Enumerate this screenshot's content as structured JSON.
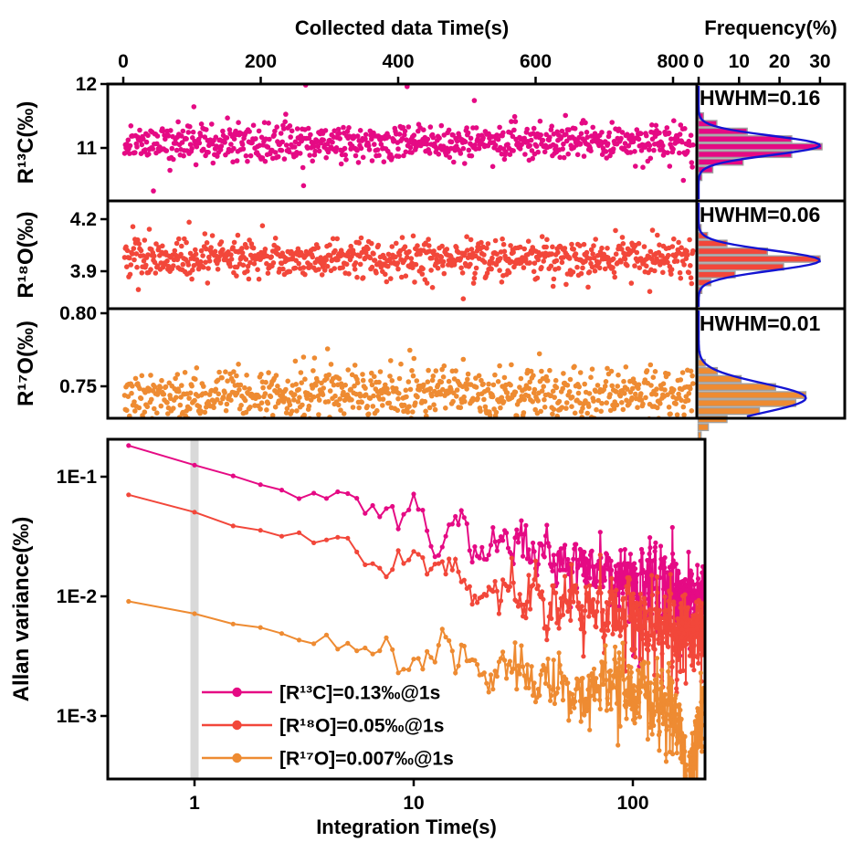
{
  "axes": {
    "top": {
      "title": "Collected data Time(s)",
      "ticks": [
        {
          "label": "0",
          "s": 0
        },
        {
          "label": "200",
          "s": 200
        },
        {
          "label": "400",
          "s": 400
        },
        {
          "label": "600",
          "s": 600
        },
        {
          "label": "800",
          "s": 800
        }
      ]
    },
    "frequency": {
      "title": "Frequency(%)",
      "ticks": [
        {
          "label": "0",
          "pct": 0
        },
        {
          "label": "10",
          "pct": 10
        },
        {
          "label": "20",
          "pct": 20
        },
        {
          "label": "30",
          "pct": 30
        }
      ]
    },
    "bottom": {
      "title": "Integration Time(s)",
      "ticks": [
        {
          "label": "1",
          "tau": 1
        },
        {
          "label": "10",
          "tau": 10
        },
        {
          "label": "100",
          "tau": 100
        }
      ]
    },
    "allan_y": {
      "ticks": [
        {
          "label": "1E-1",
          "exp": -1
        },
        {
          "label": "1E-2",
          "exp": -2
        },
        {
          "label": "1E-3",
          "exp": -3
        }
      ]
    }
  },
  "colors": {
    "r13c": "#E50A84",
    "r18o": "#F2473A",
    "r17o": "#EE8B32",
    "gauss_fit_blue": "#1414D2",
    "bar_edge_gray": "#A0A0A0",
    "band_gray": "#D9D9D9",
    "frame_black": "#000000"
  },
  "chart_data": [
    {
      "type": "scatter",
      "id": "r13c-time-series",
      "ylabel": "R¹³C(‰)",
      "color": "#E50A84",
      "yticks": [
        {
          "label": "12",
          "v": 12
        },
        {
          "label": "11",
          "v": 11
        }
      ],
      "x_range_s": [
        0,
        830
      ],
      "n_points": 830,
      "mean": 11.08,
      "sigma": 0.145,
      "seed": 11,
      "hwhm_label": "HWHM=0.16",
      "hist_bars_pct": [
        [
          11.5,
          1.2
        ],
        [
          11.38,
          4.5
        ],
        [
          11.26,
          12
        ],
        [
          11.14,
          23
        ],
        [
          11.02,
          30.5
        ],
        [
          10.9,
          23
        ],
        [
          10.78,
          11
        ],
        [
          10.66,
          3.5
        ],
        [
          10.54,
          0.8
        ]
      ],
      "hist_bin": 0.12,
      "gauss_fit": {
        "mean": 11.04,
        "sigma": 0.15,
        "amp_pct": 30
      }
    },
    {
      "type": "scatter",
      "id": "r18o-time-series",
      "ylabel": "R¹⁸O(‰)",
      "color": "#F2473A",
      "yticks": [
        {
          "label": "4.2",
          "v": 4.2
        },
        {
          "label": "3.9",
          "v": 3.9
        }
      ],
      "x_range_s": [
        0,
        830
      ],
      "n_points": 830,
      "mean": 3.975,
      "sigma": 0.058,
      "seed": 22,
      "hwhm_label": "HWHM=0.06",
      "hist_bars_pct": [
        [
          4.15,
          0.6
        ],
        [
          4.105,
          2.2
        ],
        [
          4.06,
          7
        ],
        [
          4.015,
          17
        ],
        [
          3.97,
          30
        ],
        [
          3.925,
          21
        ],
        [
          3.88,
          9
        ],
        [
          3.835,
          3
        ],
        [
          3.79,
          0.8
        ]
      ],
      "hist_bin": 0.045,
      "gauss_fit": {
        "mean": 3.962,
        "sigma": 0.058,
        "amp_pct": 30
      }
    },
    {
      "type": "scatter",
      "id": "r17o-time-series",
      "ylabel": "R¹⁷O(‰)",
      "color": "#EE8B32",
      "yticks": [
        {
          "label": "0.80",
          "v": 0.8
        },
        {
          "label": "0.75",
          "v": 0.75
        }
      ],
      "x_range_s": [
        0,
        830
      ],
      "n_points": 830,
      "mean": 0.7445,
      "sigma": 0.0095,
      "seed": 33,
      "hwhm_label": "HWHM=0.01",
      "hist_bars_pct": [
        [
          0.7715,
          0.4
        ],
        [
          0.766,
          1.6
        ],
        [
          0.7605,
          4.6
        ],
        [
          0.755,
          10.5
        ],
        [
          0.7495,
          19
        ],
        [
          0.744,
          26.5
        ],
        [
          0.7385,
          24
        ],
        [
          0.733,
          15
        ],
        [
          0.7275,
          7
        ],
        [
          0.722,
          2.4
        ],
        [
          0.7165,
          0.6
        ]
      ],
      "hist_bin": 0.0055,
      "gauss_fit": {
        "mean": 0.742,
        "sigma": 0.01,
        "amp_pct": 26.5
      }
    },
    {
      "type": "line",
      "id": "allan-variance",
      "ylabel": "Allan variance(‰)",
      "xlabel": "Integration Time(s)",
      "x_range_s": [
        0.4,
        213
      ],
      "y_range": [
        0.0003,
        0.2
      ],
      "highlight_band_at_s": 1,
      "tau_step_s": 0.5,
      "tau_max_s": 210,
      "series": [
        {
          "id": "R13C",
          "legend": "[R¹³C]=0.13‰@1s",
          "color": "#E50A84",
          "value_at_1s": 0.13,
          "slope": 0.48,
          "seed": 101
        },
        {
          "id": "R18O",
          "legend": "[R¹⁸O]=0.05‰@1s",
          "color": "#F2473A",
          "value_at_1s": 0.05,
          "slope": 0.44,
          "seed": 202
        },
        {
          "id": "R17O",
          "legend": "[R¹⁷O]=0.007‰@1s",
          "color": "#EE8B32",
          "value_at_1s": 0.0072,
          "slope": 0.33,
          "seed": 303,
          "dip": {
            "log10_tau": 2.25,
            "depth_log10": 0.52,
            "width_log10": 0.05
          }
        }
      ]
    }
  ]
}
